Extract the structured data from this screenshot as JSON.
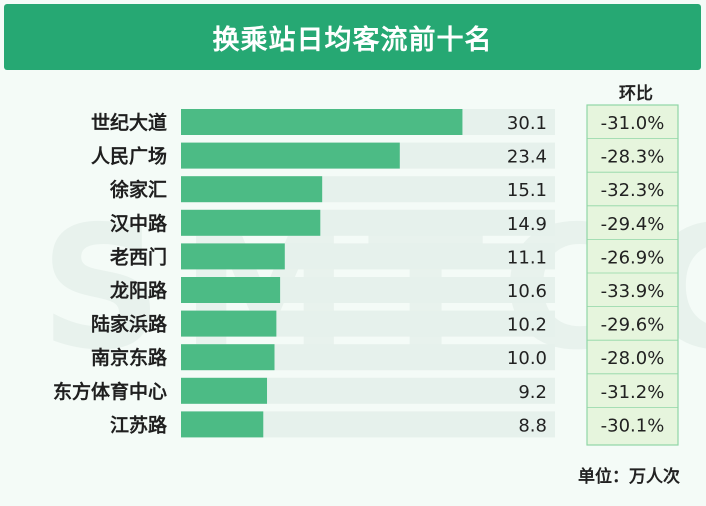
{
  "title": "换乘站日均客流前十名",
  "ratio_header": "环比",
  "unit_note": "单位：万人次",
  "watermark": "SMTCC",
  "colors": {
    "title_bg": "#26a873",
    "bar": "#4cbb85",
    "track": "#e6f1ec",
    "ratio_bg": "#e6f5dd",
    "ratio_border": "#8fd6a6"
  },
  "chart_data": {
    "type": "bar",
    "orientation": "horizontal",
    "title": "换乘站日均客流前十名",
    "unit": "万人次",
    "categories": [
      "世纪大道",
      "人民广场",
      "徐家汇",
      "汉中路",
      "老西门",
      "龙阳路",
      "陆家浜路",
      "南京东路",
      "东方体育中心",
      "江苏路"
    ],
    "series": [
      {
        "values": [
          30.1,
          23.4,
          15.1,
          14.9,
          11.1,
          10.6,
          10.2,
          10.0,
          9.2,
          8.8
        ],
        "labels": [
          "30.1",
          "23.4",
          "15.1",
          "14.9",
          "11.1",
          "10.6",
          "10.2",
          "10.0",
          "9.2",
          "8.8"
        ]
      }
    ],
    "change_header": "环比",
    "changes": [
      "-31.0%",
      "-28.3%",
      "-32.3%",
      "-29.4%",
      "-26.9%",
      "-33.9%",
      "-29.6%",
      "-28.0%",
      "-31.2%",
      "-30.1%"
    ],
    "xlim": [
      0,
      40
    ],
    "legend": "none",
    "grid": false
  }
}
